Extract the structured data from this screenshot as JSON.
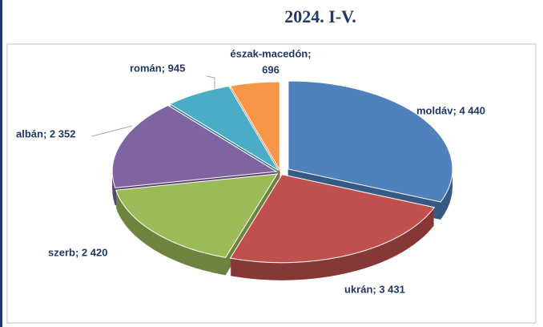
{
  "chart_data": {
    "type": "pie",
    "title": "2024. I-V.",
    "values": [
      4440,
      3431,
      2420,
      2352,
      945,
      696
    ],
    "value_labels": [
      "moldáv; 4 440",
      "ukrán; 3 431",
      "szerb; 2 420",
      "albán; 2 352",
      "román; 945",
      [
        "észak-macedón;",
        "696"
      ]
    ],
    "colors": [
      "#4f81bd",
      "#c0504d",
      "#9bbb59",
      "#8064a2",
      "#4bacc6",
      "#f79646"
    ]
  }
}
